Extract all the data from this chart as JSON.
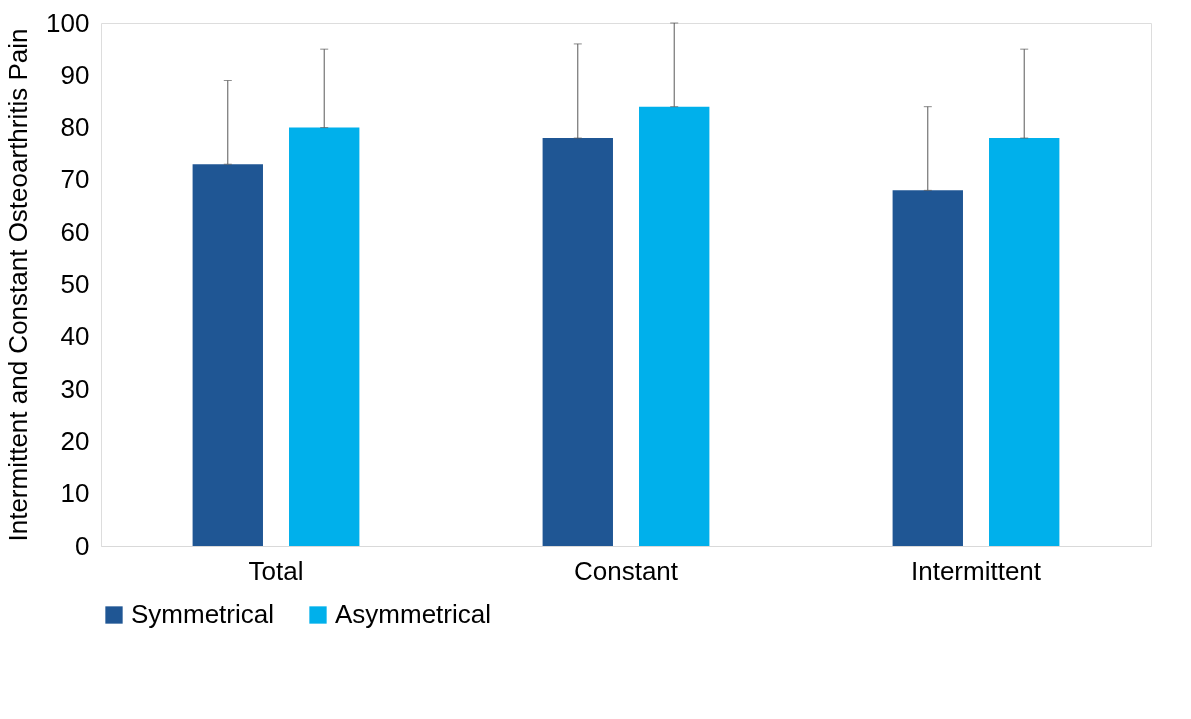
{
  "chart_data": {
    "type": "bar",
    "ylabel": "Intermittent and Constant Osteoarthritis Pain",
    "categories": [
      "Total",
      "Constant",
      "Intermittent"
    ],
    "series": [
      {
        "name": "Symmetrical",
        "color": "#1f5694",
        "values": [
          73,
          78,
          68
        ],
        "errors": [
          [
            73,
            89
          ],
          [
            78,
            96
          ],
          [
            68,
            84
          ]
        ]
      },
      {
        "name": "Asymmetrical",
        "color": "#00b0eb",
        "values": [
          80,
          84,
          78
        ],
        "errors": [
          [
            80,
            95
          ],
          [
            84,
            100
          ],
          [
            78,
            95
          ]
        ]
      }
    ],
    "ylim": [
      0,
      100
    ],
    "yticks": [
      0,
      10,
      20,
      30,
      40,
      50,
      60,
      70,
      80,
      90,
      100
    ],
    "grid": false,
    "legend": "bottom"
  }
}
